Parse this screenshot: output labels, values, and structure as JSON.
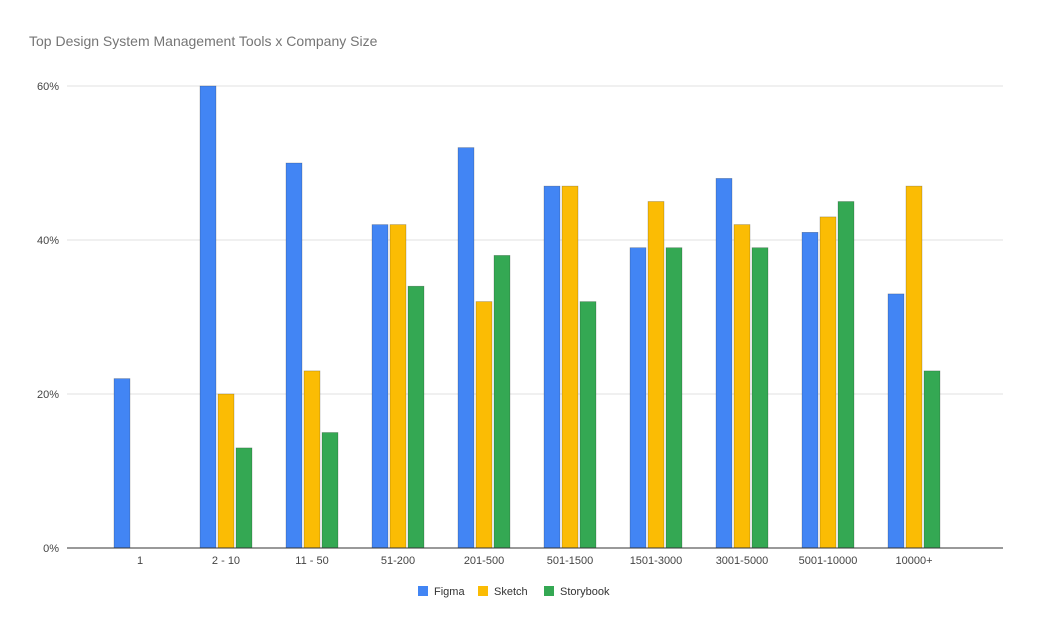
{
  "chart_data": {
    "type": "bar",
    "title": "Top Design System Management Tools x Company Size",
    "xlabel": "",
    "ylabel": "",
    "categories": [
      "1",
      "2 - 10",
      "11 - 50",
      "51-200",
      "201-500",
      "501-1500",
      "1501-3000",
      "3001-5000",
      "5001-10000",
      "10000+"
    ],
    "series": [
      {
        "name": "Figma",
        "color": "#4285F4",
        "values": [
          22,
          60,
          50,
          42,
          52,
          47,
          39,
          48,
          41,
          33
        ]
      },
      {
        "name": "Sketch",
        "color": "#FBBC04",
        "values": [
          0,
          20,
          23,
          42,
          32,
          47,
          45,
          42,
          43,
          47
        ]
      },
      {
        "name": "Storybook",
        "color": "#34A853",
        "values": [
          0,
          13,
          15,
          34,
          38,
          32,
          39,
          39,
          45,
          23
        ]
      }
    ],
    "ylim": [
      0,
      60
    ],
    "yticks": [
      "0%",
      "20%",
      "40%",
      "60%"
    ],
    "ytick_values": [
      0,
      20,
      40,
      60
    ],
    "grid": true,
    "legend_position": "bottom"
  }
}
